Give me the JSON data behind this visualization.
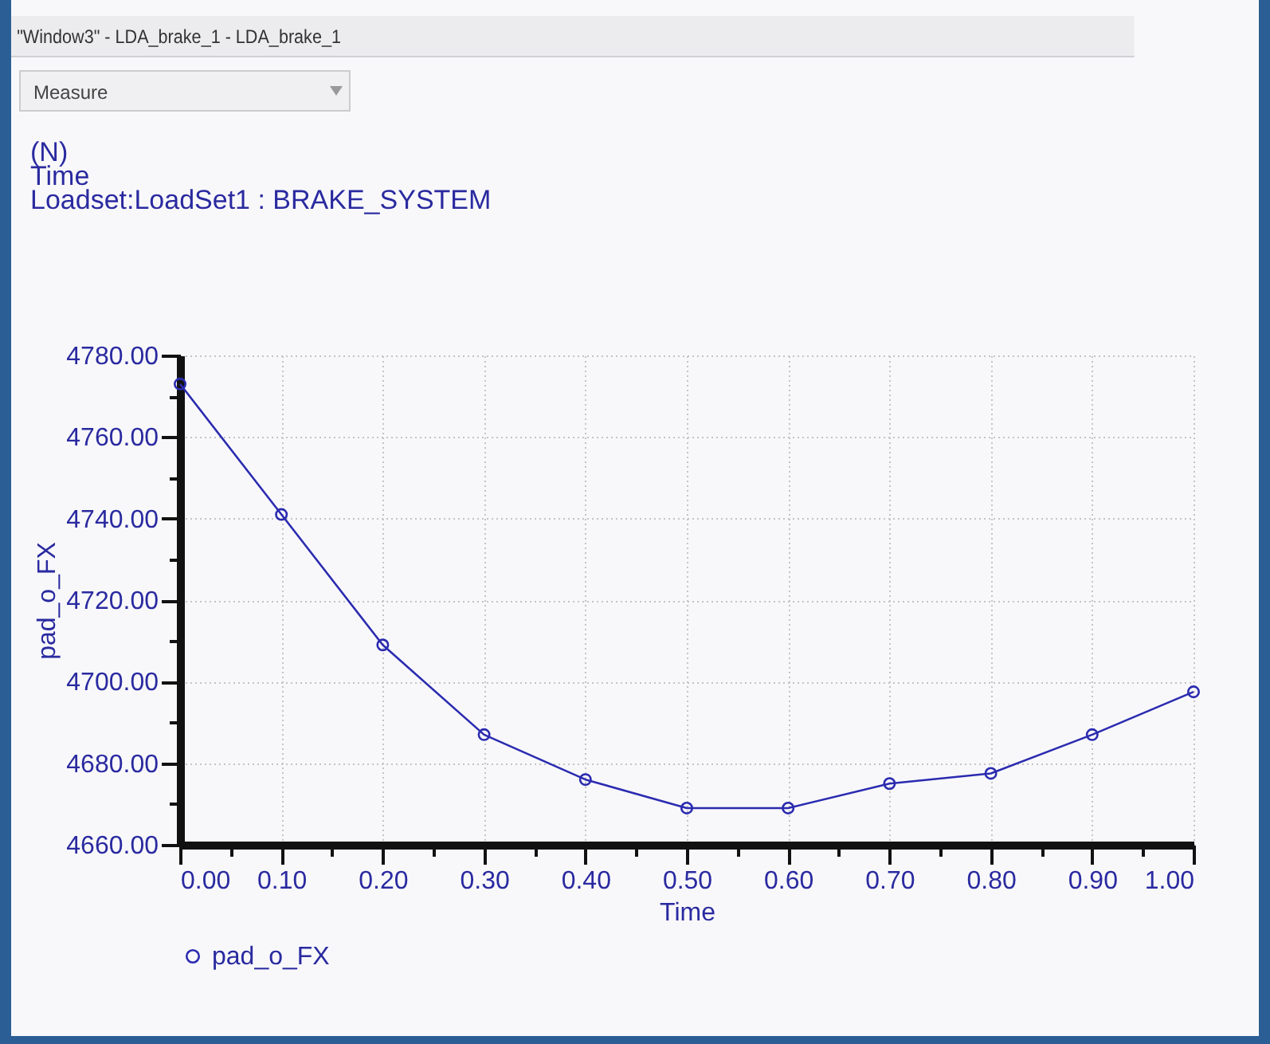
{
  "chart_data": {
    "type": "line",
    "annotations": [
      "\"Window3\" - LDA_brake_1 - LDA_brake_1",
      "Measure",
      "(N)",
      "Time",
      "Loadset:LoadSet1 :  BRAKE_SYSTEM"
    ],
    "xlabel": "Time",
    "ylabel": "pad_o_FX",
    "x": [
      0,
      0.1,
      0.2,
      0.3,
      0.4,
      0.5,
      0.6,
      0.7,
      0.8,
      0.9,
      1.0
    ],
    "series": [
      {
        "name": "pad_o_FX",
        "color": "#2b2bb0",
        "values": [
          4773,
          4741,
          4709,
          4687,
          4676,
          4669,
          4669,
          4675,
          4677.5,
          4687,
          4697.5
        ]
      }
    ],
    "xlim": [
      0,
      1
    ],
    "xticks": [
      {
        "value": 0,
        "label": "0.00"
      },
      {
        "value": 0.05,
        "label": null
      },
      {
        "value": 0.1,
        "label": "0.10"
      },
      {
        "value": 0.15,
        "label": null
      },
      {
        "value": 0.2,
        "label": "0.20"
      },
      {
        "value": 0.25,
        "label": null
      },
      {
        "value": 0.3,
        "label": "0.30"
      },
      {
        "value": 0.35,
        "label": null
      },
      {
        "value": 0.4,
        "label": "0.40"
      },
      {
        "value": 0.45,
        "label": null
      },
      {
        "value": 0.5,
        "label": "0.50"
      },
      {
        "value": 0.55,
        "label": null
      },
      {
        "value": 0.6,
        "label": "0.60"
      },
      {
        "value": 0.65,
        "label": null
      },
      {
        "value": 0.7,
        "label": "0.70"
      },
      {
        "value": 0.75,
        "label": null
      },
      {
        "value": 0.8,
        "label": "0.80"
      },
      {
        "value": 0.85,
        "label": null
      },
      {
        "value": 0.9,
        "label": "0.90"
      },
      {
        "value": 0.95,
        "label": null
      },
      {
        "value": 1,
        "label": "1.00"
      }
    ],
    "ylim": [
      4660,
      4780
    ],
    "yticks": [
      {
        "value": 4660,
        "label": "4660.00"
      },
      {
        "value": 4670,
        "label": null
      },
      {
        "value": 4680,
        "label": "4680.00"
      },
      {
        "value": 4690,
        "label": null
      },
      {
        "value": 4700,
        "label": "4700.00"
      },
      {
        "value": 4710,
        "label": null
      },
      {
        "value": 4720,
        "label": "4720.00"
      },
      {
        "value": 4730,
        "label": null
      },
      {
        "value": 4740,
        "label": "4740.00"
      },
      {
        "value": 4750,
        "label": null
      },
      {
        "value": 4760,
        "label": "4760.00"
      },
      {
        "value": 4770,
        "label": null
      },
      {
        "value": 4780,
        "label": "4780.00"
      }
    ],
    "grid": true,
    "legend": "bottom",
    "marker": "circle",
    "line_style": "solid"
  }
}
